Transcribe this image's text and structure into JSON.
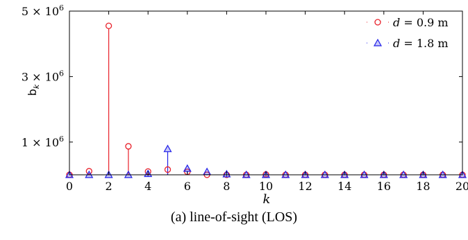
{
  "caption": "(a) line-of-sight (LOS)",
  "chart_data": {
    "type": "stem",
    "xlabel": "k",
    "ylabel": "b",
    "ylabel_subscript": "k",
    "xlim": [
      0,
      20
    ],
    "ylim": [
      0,
      5000000
    ],
    "xticks": [
      0,
      2,
      4,
      6,
      8,
      10,
      12,
      14,
      16,
      18,
      20
    ],
    "yticks": [
      {
        "value": 1000000,
        "mantissa": "1",
        "exponent": "6"
      },
      {
        "value": 3000000,
        "mantissa": "3",
        "exponent": "6"
      },
      {
        "value": 5000000,
        "mantissa": "5",
        "exponent": "6"
      }
    ],
    "legend_position": "top-right",
    "series": [
      {
        "name": "d = 0.9 m",
        "legend_var": "d",
        "legend_value": "= 0.9 m",
        "color": "#e8202a",
        "marker": "circle",
        "x": [
          0,
          1,
          2,
          3,
          4,
          5,
          6,
          7,
          8,
          9,
          10,
          11,
          12,
          13,
          14,
          15,
          16,
          17,
          18,
          19,
          20
        ],
        "y": [
          0,
          110000,
          4550000,
          870000,
          100000,
          160000,
          90000,
          0,
          0,
          0,
          10000,
          0,
          0,
          0,
          0,
          0,
          0,
          0,
          0,
          0,
          0
        ]
      },
      {
        "name": "d = 1.8 m",
        "legend_var": "d",
        "legend_value": "= 1.8 m",
        "color": "#2020e8",
        "marker": "triangle",
        "x": [
          0,
          1,
          2,
          3,
          4,
          5,
          6,
          7,
          8,
          9,
          10,
          11,
          12,
          13,
          14,
          15,
          16,
          17,
          18,
          19,
          20
        ],
        "y": [
          0,
          0,
          0,
          0,
          30000,
          790000,
          190000,
          90000,
          20000,
          0,
          0,
          0,
          0,
          0,
          0,
          0,
          0,
          0,
          0,
          0,
          0
        ]
      }
    ]
  }
}
